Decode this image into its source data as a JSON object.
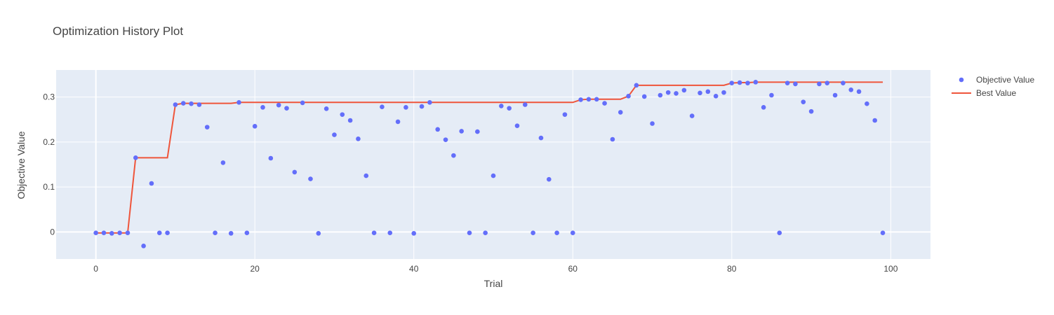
{
  "chart_data": {
    "type": "scatter",
    "title": "Optimization History Plot",
    "xlabel": "Trial",
    "ylabel": "Objective Value",
    "xlim": [
      -5,
      105
    ],
    "ylim": [
      -0.06,
      0.36
    ],
    "x_ticks": [
      0,
      20,
      40,
      60,
      80,
      100
    ],
    "y_ticks": [
      0,
      0.1,
      0.2,
      0.3
    ],
    "y_tick_labels": [
      "0",
      "0.1",
      "0.2",
      "0.3"
    ],
    "grid": true,
    "legend_position": "top-right",
    "background_color": "#e5ecf6",
    "series": [
      {
        "name": "Objective Value",
        "mode": "markers",
        "color": "#636efa",
        "x": [
          0,
          1,
          2,
          3,
          4,
          5,
          6,
          7,
          8,
          9,
          10,
          11,
          12,
          13,
          14,
          15,
          16,
          17,
          18,
          19,
          20,
          21,
          22,
          23,
          24,
          25,
          26,
          27,
          28,
          29,
          30,
          31,
          32,
          33,
          34,
          35,
          36,
          37,
          38,
          39,
          40,
          41,
          42,
          43,
          44,
          45,
          46,
          47,
          48,
          49,
          50,
          51,
          52,
          53,
          54,
          55,
          56,
          57,
          58,
          59,
          60,
          61,
          62,
          63,
          64,
          65,
          66,
          67,
          68,
          69,
          70,
          71,
          72,
          73,
          74,
          75,
          76,
          77,
          78,
          79,
          80,
          81,
          82,
          83,
          84,
          85,
          86,
          87,
          88,
          89,
          90,
          91,
          92,
          93,
          94,
          95,
          96,
          97,
          98,
          99
        ],
        "y": [
          -0.002,
          -0.002,
          -0.003,
          -0.002,
          -0.002,
          0.165,
          -0.031,
          0.108,
          -0.002,
          -0.002,
          0.283,
          0.286,
          0.285,
          0.283,
          0.233,
          -0.002,
          0.154,
          -0.003,
          0.288,
          -0.002,
          0.235,
          0.277,
          0.164,
          0.282,
          0.275,
          0.133,
          0.287,
          0.118,
          -0.003,
          0.274,
          0.216,
          0.261,
          0.248,
          0.207,
          0.125,
          -0.002,
          0.278,
          -0.002,
          0.245,
          0.277,
          -0.003,
          0.279,
          0.288,
          0.228,
          0.205,
          0.17,
          0.224,
          -0.002,
          0.223,
          -0.002,
          0.125,
          0.28,
          0.275,
          0.236,
          0.283,
          -0.002,
          0.209,
          0.117,
          -0.002,
          0.261,
          -0.002,
          0.294,
          0.295,
          0.295,
          0.286,
          0.206,
          0.266,
          0.302,
          0.326,
          0.301,
          0.241,
          0.304,
          0.31,
          0.308,
          0.315,
          0.258,
          0.309,
          0.312,
          0.302,
          0.31,
          0.331,
          0.332,
          0.331,
          0.333,
          0.277,
          0.304,
          -0.002,
          0.331,
          0.329,
          0.289,
          0.268,
          0.329,
          0.331,
          0.304,
          0.331,
          0.316,
          0.312,
          0.285,
          0.248,
          -0.002
        ]
      },
      {
        "name": "Best Value",
        "mode": "lines",
        "color": "#ef553b",
        "x": [
          0,
          1,
          2,
          3,
          4,
          5,
          6,
          7,
          8,
          9,
          10,
          11,
          12,
          13,
          14,
          15,
          16,
          17,
          18,
          19,
          20,
          21,
          22,
          23,
          24,
          25,
          26,
          27,
          28,
          29,
          30,
          31,
          32,
          33,
          34,
          35,
          36,
          37,
          38,
          39,
          40,
          41,
          42,
          43,
          44,
          45,
          46,
          47,
          48,
          49,
          50,
          51,
          52,
          53,
          54,
          55,
          56,
          57,
          58,
          59,
          60,
          61,
          62,
          63,
          64,
          65,
          66,
          67,
          68,
          69,
          70,
          71,
          72,
          73,
          74,
          75,
          76,
          77,
          78,
          79,
          80,
          81,
          82,
          83,
          84,
          85,
          86,
          87,
          88,
          89,
          90,
          91,
          92,
          93,
          94,
          95,
          96,
          97,
          98,
          99
        ],
        "y": [
          -0.002,
          -0.002,
          -0.002,
          -0.002,
          -0.002,
          0.165,
          0.165,
          0.165,
          0.165,
          0.165,
          0.283,
          0.286,
          0.286,
          0.286,
          0.286,
          0.286,
          0.286,
          0.286,
          0.288,
          0.288,
          0.288,
          0.288,
          0.288,
          0.288,
          0.288,
          0.288,
          0.288,
          0.288,
          0.288,
          0.288,
          0.288,
          0.288,
          0.288,
          0.288,
          0.288,
          0.288,
          0.288,
          0.288,
          0.288,
          0.288,
          0.288,
          0.288,
          0.288,
          0.288,
          0.288,
          0.288,
          0.288,
          0.288,
          0.288,
          0.288,
          0.288,
          0.288,
          0.288,
          0.288,
          0.288,
          0.288,
          0.288,
          0.288,
          0.288,
          0.288,
          0.288,
          0.294,
          0.295,
          0.295,
          0.295,
          0.295,
          0.295,
          0.302,
          0.326,
          0.326,
          0.326,
          0.326,
          0.326,
          0.326,
          0.326,
          0.326,
          0.326,
          0.326,
          0.326,
          0.326,
          0.331,
          0.332,
          0.332,
          0.333,
          0.333,
          0.333,
          0.333,
          0.333,
          0.333,
          0.333,
          0.333,
          0.333,
          0.333,
          0.333,
          0.333,
          0.333,
          0.333,
          0.333,
          0.333,
          0.333
        ]
      }
    ]
  }
}
